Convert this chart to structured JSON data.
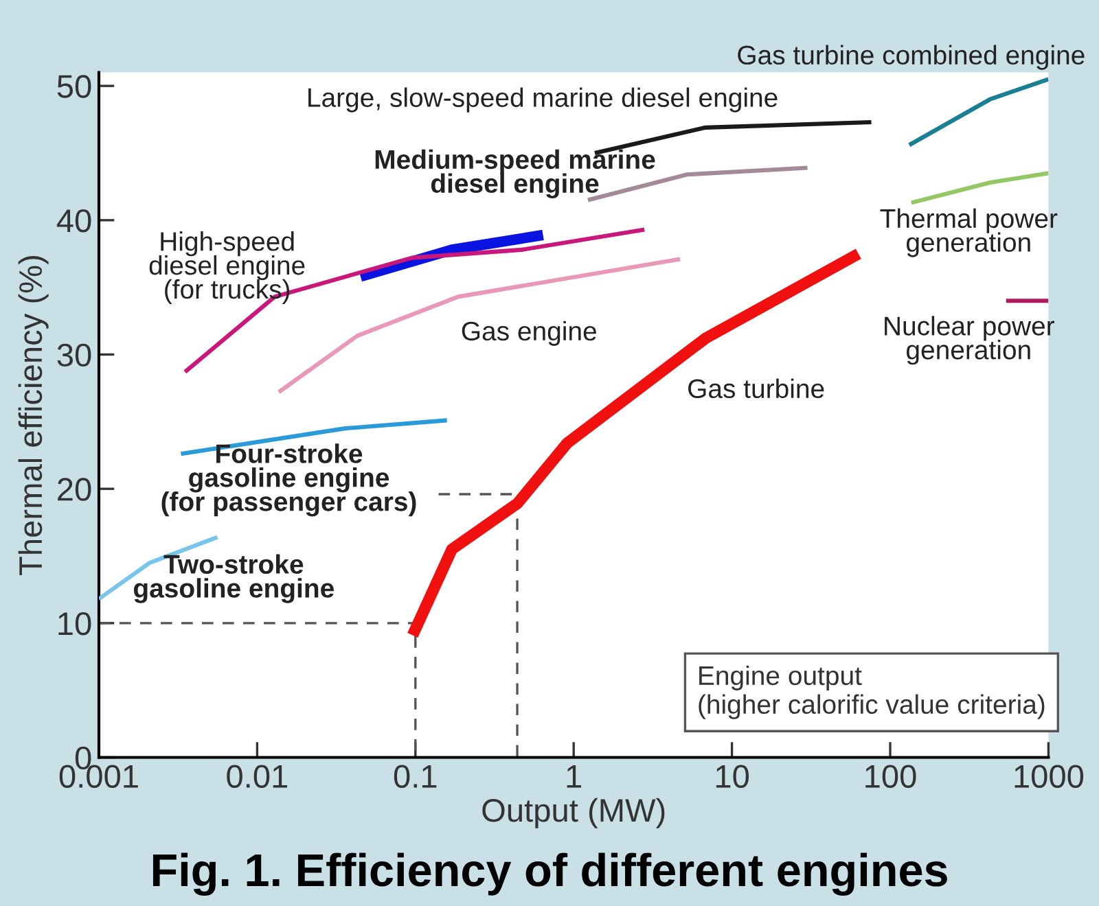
{
  "chart_data": {
    "type": "line",
    "title": "Fig. 1. Efficiency of different engines",
    "xlabel": "Output (MW)",
    "ylabel": "Thermal efficiency (%)",
    "log": "x",
    "xlim": [
      0.001,
      1000
    ],
    "xticks": [
      0.001,
      0.01,
      0.1,
      1,
      10,
      100,
      1000
    ],
    "ylim": [
      0,
      51
    ],
    "yticks": [
      0,
      10,
      20,
      30,
      40,
      50
    ],
    "series": [
      {
        "color": "#1a1a1a",
        "x": [
          1.36,
          6.8,
          76
        ],
        "values": [
          45.0,
          46.9,
          47.3
        ]
      },
      {
        "color": "#a48a98",
        "x": [
          1.23,
          5.2,
          30
        ],
        "values": [
          41.5,
          43.4,
          43.9
        ]
      },
      {
        "color": "#0a14e0",
        "x": [
          0.045,
          0.17,
          0.64
        ],
        "values": [
          35.8,
          37.8,
          38.9
        ]
      },
      {
        "color": "#c8187c",
        "x": [
          0.0035,
          0.0129,
          0.095,
          0.47,
          2.8
        ],
        "values": [
          28.7,
          34.3,
          37.2,
          37.8,
          39.3
        ]
      },
      {
        "color": "#ea98b8",
        "x": [
          0.0137,
          0.043,
          0.186,
          4.7
        ],
        "values": [
          27.2,
          31.4,
          34.3,
          37.1
        ]
      },
      {
        "color": "#2a9ad8",
        "x": [
          0.0033,
          0.036,
          0.158
        ],
        "values": [
          22.6,
          24.5,
          25.1
        ]
      },
      {
        "color": "#78c4ea",
        "x": [
          0.001,
          0.0021,
          0.0056
        ],
        "values": [
          11.8,
          14.5,
          16.4
        ]
      },
      {
        "color": "#f01010",
        "x": [
          0.096,
          0.17,
          0.44,
          0.91,
          6.8,
          63
        ],
        "values": [
          9.1,
          15.5,
          18.9,
          23.4,
          31.2,
          37.5
        ]
      },
      {
        "color": "#1a7e94",
        "x": [
          132,
          427,
          1000
        ],
        "values": [
          45.6,
          49.0,
          50.5
        ]
      },
      {
        "color": "#94c864",
        "x": [
          136,
          427,
          1000
        ],
        "values": [
          41.3,
          42.8,
          43.5
        ]
      },
      {
        "color": "#b01860",
        "x": [
          540,
          1000
        ],
        "values": [
          34.0,
          34.0
        ]
      },
      {
        "color": "#555555",
        "line_style": "dashed",
        "x": [
          0.001,
          0.1,
          0.1
        ],
        "values": [
          10,
          10,
          0
        ]
      },
      {
        "color": "#555555",
        "line_style": "dashed",
        "x": [
          0.14,
          0.44,
          0.44
        ],
        "values": [
          19.6,
          19.6,
          0
        ]
      }
    ],
    "annotations": [
      "Gas turbine combined engine",
      "Large, slow-speed marine diesel engine",
      "Medium-speed marine\ndiesel engine",
      "High-speed\ndiesel engine\n(for trucks)",
      "Gas engine",
      "Thermal power\ngeneration",
      "Nuclear power\ngeneration",
      "Gas turbine",
      "Four-stroke\ngasoline engine\n(for passenger cars)",
      "Two-stroke\ngasoline engine",
      "Engine output\n(higher calorific value criteria)"
    ]
  }
}
